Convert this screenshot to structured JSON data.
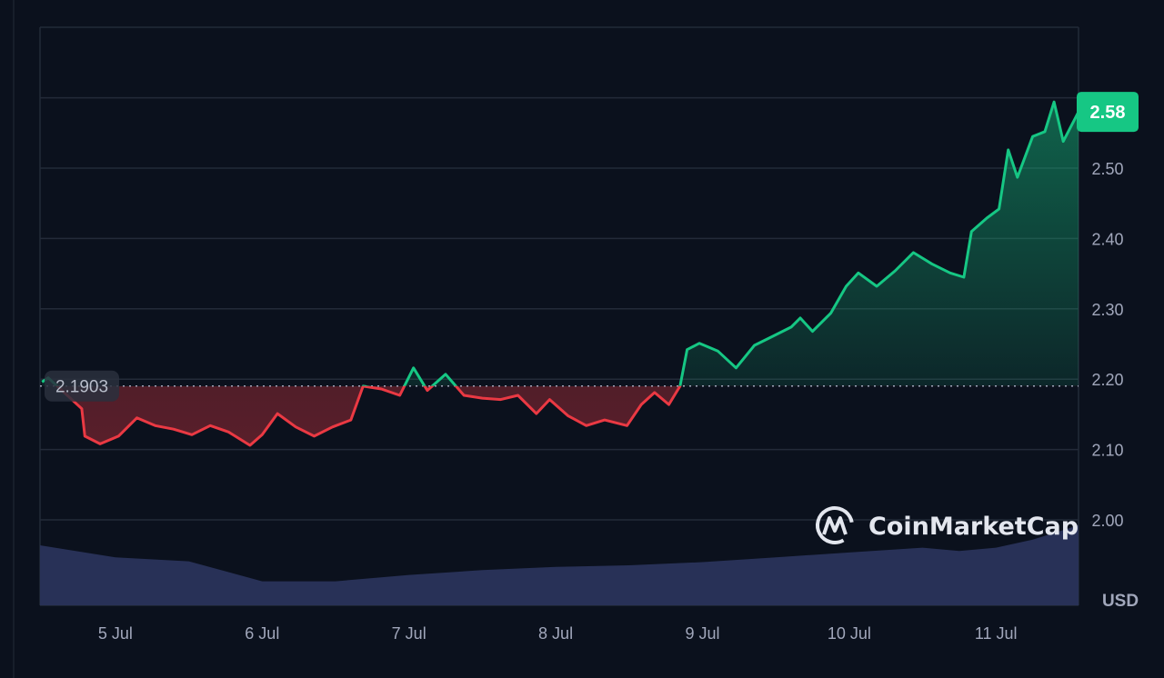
{
  "chart_data": {
    "type": "line",
    "currency_label": "USD",
    "watermark": "CoinMarketCap",
    "current_price_label": "2.58",
    "baseline_label": "2.1903",
    "baseline": 2.1903,
    "ylim": [
      1.92,
      2.7
    ],
    "y_ticks": [
      "2.00",
      "2.10",
      "2.20",
      "2.30",
      "2.40",
      "2.50"
    ],
    "x_ticks": [
      "5 Jul",
      "6 Jul",
      "7 Jul",
      "8 Jul",
      "9 Jul",
      "10 Jul",
      "11 Jul"
    ],
    "xlim": [
      "4 Jul 11:40",
      "11 Jul 13:30"
    ],
    "grid": true,
    "colors": {
      "up": "#16c784",
      "down": "#ea3943",
      "volume": "#283157",
      "background": "#0b111d",
      "grid": "#232a38"
    },
    "series": [
      {
        "x": [
          "4 Jul 12:00",
          "4 Jul 13:00",
          "4 Jul 18:30",
          "4 Jul 19:00",
          "4 Jul 21:30",
          "5 Jul 00:30",
          "5 Jul 03:30",
          "5 Jul 06:30",
          "5 Jul 09:30",
          "5 Jul 12:30",
          "5 Jul 15:30",
          "5 Jul 18:30",
          "5 Jul 22:00",
          "6 Jul 00:00",
          "6 Jul 02:30",
          "6 Jul 05:30",
          "6 Jul 08:30",
          "6 Jul 11:30",
          "6 Jul 14:30",
          "6 Jul 16:30",
          "6 Jul 19:30",
          "6 Jul 22:30",
          "7 Jul 00:45",
          "7 Jul 03:00",
          "7 Jul 06:00",
          "7 Jul 09:00",
          "7 Jul 12:00",
          "7 Jul 15:00",
          "7 Jul 17:50",
          "7 Jul 20:50",
          "7 Jul 23:00",
          "8 Jul 02:00",
          "8 Jul 05:00",
          "8 Jul 08:00",
          "8 Jul 11:40",
          "8 Jul 14:00",
          "8 Jul 16:10",
          "8 Jul 18:30",
          "8 Jul 20:20",
          "8 Jul 21:30",
          "8 Jul 23:30",
          "9 Jul 02:30",
          "9 Jul 05:30",
          "9 Jul 08:30",
          "9 Jul 11:30",
          "9 Jul 14:30",
          "9 Jul 16:00",
          "9 Jul 18:00",
          "9 Jul 21:00",
          "9 Jul 23:30",
          "10 Jul 01:30",
          "10 Jul 04:30",
          "10 Jul 07:30",
          "10 Jul 10:30",
          "10 Jul 13:30",
          "10 Jul 16:30",
          "10 Jul 18:45",
          "10 Jul 20:00",
          "10 Jul 22:30",
          "11 Jul 00:30",
          "11 Jul 02:00",
          "11 Jul 03:30",
          "11 Jul 06:00",
          "11 Jul 08:00",
          "11 Jul 09:30",
          "11 Jul 11:00",
          "11 Jul 13:30"
        ],
        "values": [
          2.196,
          2.202,
          2.158,
          2.119,
          2.108,
          2.119,
          2.145,
          2.134,
          2.129,
          2.121,
          2.134,
          2.125,
          2.106,
          2.121,
          2.151,
          2.132,
          2.119,
          2.132,
          2.142,
          2.19,
          2.186,
          2.177,
          2.216,
          2.184,
          2.207,
          2.177,
          2.173,
          2.171,
          2.177,
          2.151,
          2.171,
          2.148,
          2.134,
          2.142,
          2.134,
          2.164,
          2.181,
          2.164,
          2.19,
          2.242,
          2.251,
          2.24,
          2.216,
          2.248,
          2.261,
          2.274,
          2.287,
          2.268,
          2.294,
          2.332,
          2.351,
          2.332,
          2.354,
          2.38,
          2.364,
          2.351,
          2.345,
          2.41,
          2.429,
          2.442,
          2.526,
          2.487,
          2.545,
          2.552,
          2.594,
          2.538,
          2.58
        ]
      }
    ],
    "volume_relative": {
      "x": [
        "4 Jul 11:40",
        "5 Jul 00:00",
        "5 Jul 12:00",
        "6 Jul 00:00",
        "6 Jul 12:00",
        "7 Jul 00:00",
        "7 Jul 12:00",
        "8 Jul 00:00",
        "8 Jul 12:00",
        "9 Jul 00:00",
        "9 Jul 12:00",
        "10 Jul 00:00",
        "10 Jul 12:00",
        "10 Jul 18:00",
        "11 Jul 00:00",
        "11 Jul 06:00",
        "11 Jul 13:30"
      ],
      "values": [
        0.75,
        0.6,
        0.55,
        0.3,
        0.3,
        0.38,
        0.44,
        0.48,
        0.5,
        0.54,
        0.6,
        0.66,
        0.72,
        0.68,
        0.72,
        0.82,
        1.0
      ]
    }
  }
}
